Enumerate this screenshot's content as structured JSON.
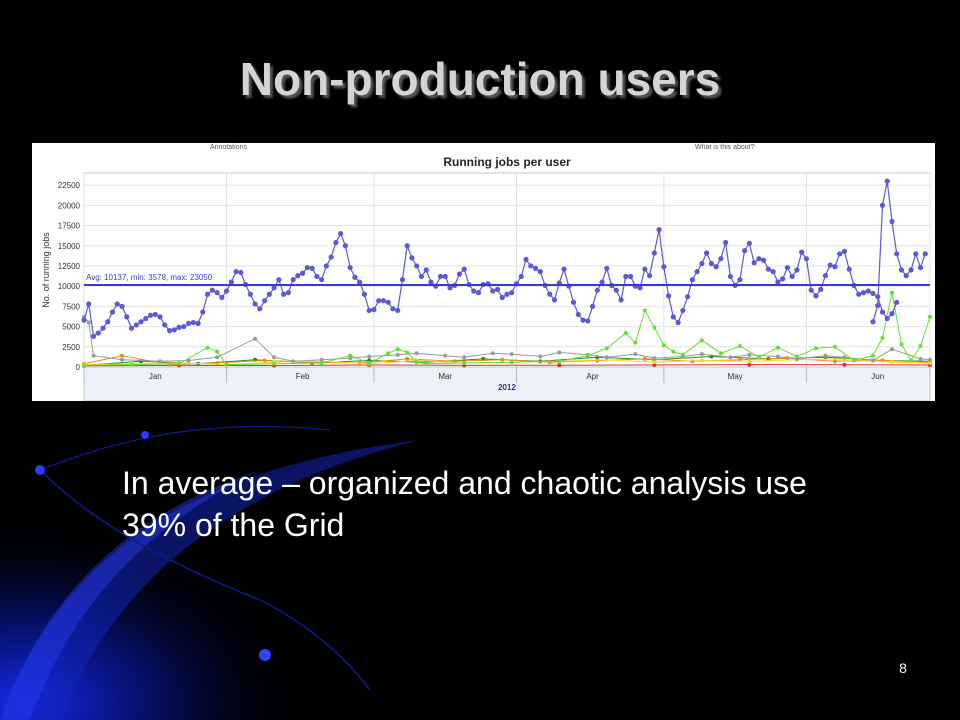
{
  "slide": {
    "title": "Non-production users",
    "body_text": "In average – organized and chaotic analysis use 39% of the Grid",
    "page_number": "8"
  },
  "chart_data": {
    "type": "line",
    "title": "Running jobs per user",
    "top_links": {
      "left": "Annotations",
      "right": "What is this about?"
    },
    "xlabel": "2012",
    "ylabel": "No. of running jobs",
    "yticks": [
      0,
      2500,
      5000,
      7500,
      10000,
      12500,
      15000,
      17500,
      20000,
      22500
    ],
    "ylim": [
      0,
      24000
    ],
    "xlim": [
      0,
      172
    ],
    "month_ticks": [
      {
        "label": "Jan",
        "pos": 15
      },
      {
        "label": "Feb",
        "pos": 46
      },
      {
        "label": "Mar",
        "pos": 76
      },
      {
        "label": "Apr",
        "pos": 107
      },
      {
        "label": "May",
        "pos": 137
      },
      {
        "label": "Jun",
        "pos": 167
      }
    ],
    "avg_line": {
      "value": 10137,
      "label": "Avg: 10137, min: 3578, max: 23050"
    },
    "colors": {
      "main": "#5b59d6",
      "avg": "#3b3bc8",
      "green": "#66dd33",
      "grey": "#9a9a9a",
      "yellow": "#e8e020",
      "orange": "#e89020",
      "red": "#d83030",
      "darkgreen": "#2a8a2a"
    },
    "grid": true,
    "legend": "none",
    "series": [
      {
        "name": "",
        "color": "#5b59d6",
        "x": [
          0,
          1,
          2,
          3,
          4,
          5,
          6,
          7,
          8,
          9,
          10,
          11,
          12,
          13,
          14,
          15,
          16,
          17,
          18,
          19,
          20,
          21,
          22,
          23,
          24,
          25,
          26,
          27,
          28,
          29,
          30,
          31,
          32,
          33,
          34,
          35,
          36,
          37,
          38,
          39,
          40,
          41,
          42,
          43,
          44,
          45,
          46,
          47,
          48,
          49,
          50,
          51,
          52,
          53,
          54,
          55,
          56,
          57,
          58,
          59,
          60,
          61,
          62,
          63,
          64,
          65,
          66,
          67,
          68,
          69,
          70,
          71,
          72,
          73,
          74,
          75,
          76,
          77,
          78,
          79,
          80,
          81,
          82,
          83,
          84,
          85,
          86,
          87,
          88,
          89,
          90,
          91,
          92,
          93,
          94,
          95,
          96,
          97,
          98,
          99,
          100,
          101,
          102,
          103,
          104,
          105,
          106,
          107,
          108,
          109,
          110,
          111,
          112,
          113,
          114,
          115,
          116,
          117,
          118,
          119,
          120,
          121,
          122,
          123,
          124,
          125,
          126,
          127,
          128,
          129,
          130,
          131,
          132,
          133,
          134,
          135,
          136,
          137,
          138,
          139,
          140,
          141,
          142,
          143,
          144,
          145,
          146,
          147,
          148,
          149,
          150,
          151,
          152,
          153,
          154,
          155,
          156,
          157,
          158,
          159,
          160,
          161,
          162,
          163,
          164,
          165,
          166,
          167,
          168,
          169,
          170,
          171
        ],
        "values": [
          5800,
          7800,
          3800,
          4200,
          4800,
          5600,
          6800,
          7800,
          7500,
          6200,
          4800,
          5200,
          5600,
          6000,
          6400,
          6500,
          6200,
          5200,
          4500,
          4600,
          4900,
          5000,
          5400,
          5500,
          5400,
          6800,
          9000,
          9500,
          9200,
          8600,
          9400,
          10500,
          11800,
          11700,
          10200,
          9000,
          7800,
          7200,
          8200,
          9000,
          9800,
          10800,
          9000,
          9200,
          10800,
          11300,
          11600,
          12300,
          12200,
          11200,
          10800,
          12500,
          13600,
          15400,
          16500,
          15000,
          12300,
          11100,
          10500,
          9000,
          7000,
          7100,
          8200,
          8200,
          8000,
          7200,
          7000,
          10800,
          15000,
          13500,
          12500,
          11200,
          12000,
          10500,
          10000,
          11200,
          11200,
          9800,
          10100,
          11500,
          12100,
          10200,
          9400,
          9200,
          10200,
          10300,
          9400,
          9600,
          8600,
          9000,
          9200,
          10300,
          11200,
          13300,
          12500,
          12200,
          11800,
          10100,
          9000,
          8300,
          10400,
          12100,
          10000,
          8000,
          6500,
          5800,
          5700,
          7500,
          9500,
          10500,
          12200,
          10100,
          9500,
          8300,
          11200,
          11200,
          10000,
          9800,
          12100,
          11300,
          14100,
          17000,
          12400,
          8800,
          6200,
          5500,
          7000,
          8700,
          10800,
          11800,
          12800,
          14100,
          12800,
          12400,
          13400,
          15400,
          11200,
          10100,
          10800,
          14400,
          15300,
          12900,
          13400,
          13200,
          12100,
          11800,
          10500,
          10900,
          12300,
          11200,
          12000,
          14200,
          13400,
          9500,
          8800,
          9600,
          11300,
          12600,
          12400,
          14000,
          14300,
          12100,
          10100,
          9000,
          9200,
          9400,
          9100,
          8700,
          6800,
          6000,
          6600,
          8000
        ],
        "values_tail_note": ""
      },
      {
        "name": "",
        "color": "#5b59d6",
        "x": [
          166,
          167,
          168,
          169,
          170,
          171,
          172,
          173,
          174,
          175,
          176,
          177
        ],
        "values": [
          5600,
          7600,
          20000,
          23000,
          18000,
          14000,
          12000,
          11300,
          12000,
          14000,
          12300,
          14000
        ]
      },
      {
        "name": "",
        "color": "#66dd33",
        "x": [
          0,
          10,
          20,
          26,
          28,
          30,
          40,
          50,
          56,
          60,
          64,
          66,
          68,
          70,
          72,
          80,
          90,
          100,
          106,
          110,
          114,
          116,
          118,
          120,
          122,
          124,
          126,
          130,
          134,
          138,
          142,
          146,
          150,
          154,
          158,
          162,
          166,
          168,
          170,
          172,
          174,
          176,
          178
        ],
        "values": [
          200,
          300,
          400,
          2400,
          1900,
          300,
          400,
          500,
          1400,
          500,
          1700,
          2200,
          1800,
          600,
          400,
          500,
          600,
          700,
          1400,
          2300,
          4200,
          3000,
          7000,
          4900,
          2700,
          1900,
          1500,
          3300,
          1700,
          2600,
          1200,
          2400,
          1300,
          2300,
          2500,
          800,
          1400,
          3600,
          9200,
          2800,
          800,
          2600,
          6200
        ]
      },
      {
        "name": "",
        "color": "#9a9a9a",
        "x": [
          0,
          1,
          2,
          8,
          16,
          22,
          28,
          36,
          40,
          44,
          50,
          56,
          60,
          66,
          70,
          76,
          80,
          86,
          90,
          96,
          100,
          106,
          110,
          116,
          120,
          126,
          130,
          136,
          140,
          146,
          150,
          156,
          160,
          166,
          170,
          176,
          178
        ],
        "values": [
          6200,
          5500,
          1400,
          900,
          700,
          800,
          1200,
          3500,
          1200,
          700,
          900,
          1100,
          1300,
          1500,
          1700,
          1400,
          1200,
          1700,
          1600,
          1300,
          1800,
          1500,
          1200,
          1600,
          1100,
          1300,
          1600,
          1200,
          1500,
          1300,
          1000,
          1400,
          1200,
          800,
          2200,
          1000,
          900
        ]
      },
      {
        "name": "",
        "color": "#e8e020",
        "x": [
          0,
          10,
          20,
          30,
          40,
          50,
          60,
          70,
          80,
          90,
          100,
          110,
          120,
          130,
          140,
          150,
          160,
          170,
          178
        ],
        "values": [
          300,
          400,
          500,
          300,
          600,
          700,
          400,
          800,
          500,
          600,
          700,
          900,
          600,
          800,
          700,
          900,
          1000,
          600,
          500
        ]
      },
      {
        "name": "",
        "color": "#e89020",
        "x": [
          0,
          8,
          18,
          28,
          38,
          48,
          58,
          68,
          78,
          88,
          98,
          108,
          118,
          128,
          138,
          148,
          158,
          168,
          178
        ],
        "values": [
          400,
          1400,
          300,
          500,
          800,
          600,
          500,
          1000,
          700,
          900,
          600,
          800,
          1000,
          700,
          900,
          1100,
          700,
          800,
          600
        ]
      },
      {
        "name": "",
        "color": "#2a8a2a",
        "x": [
          0,
          12,
          24,
          36,
          48,
          60,
          72,
          84,
          96,
          108,
          120,
          132,
          144,
          156,
          168,
          178
        ],
        "values": [
          200,
          700,
          400,
          900,
          500,
          800,
          600,
          1000,
          700,
          1200,
          900,
          1300,
          1000,
          1200,
          800,
          700
        ]
      },
      {
        "name": "",
        "color": "#d83030",
        "x": [
          0,
          20,
          40,
          60,
          80,
          100,
          120,
          140,
          160,
          178
        ],
        "values": [
          150,
          200,
          180,
          250,
          200,
          220,
          250,
          300,
          280,
          250
        ]
      }
    ]
  }
}
